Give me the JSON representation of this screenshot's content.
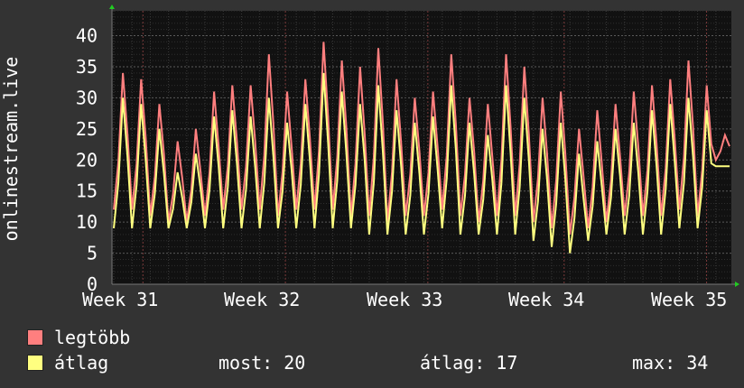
{
  "chart_data": {
    "type": "line",
    "ylabel": "onlinestream.live",
    "x_ticks": [
      "Week 31",
      "Week 32",
      "Week 33",
      "Week 34",
      "Week 35"
    ],
    "y_ticks": [
      0,
      5,
      10,
      15,
      20,
      25,
      30,
      35,
      40
    ],
    "ylim": [
      0,
      44
    ],
    "grid": true,
    "background": "#111111",
    "points_per_day": 4,
    "series": [
      {
        "name": "legtöbb",
        "color": "#ff7f7f",
        "daily_peak": [
          34,
          33,
          29,
          23,
          25,
          31,
          32,
          32,
          37,
          31,
          33,
          39,
          36,
          35,
          38,
          33,
          30,
          31,
          37,
          30,
          29,
          37,
          35,
          30,
          31,
          25,
          28,
          29,
          31,
          32,
          33,
          36,
          32,
          24
        ],
        "daily_low": [
          12,
          12,
          11,
          10,
          10,
          11,
          12,
          12,
          12,
          11,
          12,
          12,
          12,
          11,
          11,
          10,
          11,
          11,
          12,
          11,
          10,
          11,
          11,
          10,
          9,
          8,
          9,
          10,
          11,
          11,
          11,
          12,
          11,
          20
        ]
      },
      {
        "name": "átlag",
        "color": "#ffff80",
        "daily_peak": [
          30,
          29,
          25,
          18,
          21,
          27,
          28,
          27,
          30,
          26,
          29,
          34,
          31,
          29,
          32,
          28,
          26,
          27,
          32,
          26,
          24,
          32,
          30,
          25,
          26,
          21,
          23,
          25,
          26,
          28,
          29,
          30,
          28,
          19
        ],
        "daily_low": [
          9,
          9,
          9,
          9,
          9,
          9,
          9,
          9,
          9,
          9,
          9,
          9,
          9,
          9,
          8,
          8,
          8,
          8,
          9,
          8,
          8,
          8,
          8,
          7,
          6,
          5,
          7,
          8,
          8,
          8,
          8,
          9,
          9,
          19
        ]
      }
    ]
  },
  "legend": [
    {
      "label": "legtöbb",
      "color": "#ff7f7f"
    },
    {
      "label": "átlag",
      "color": "#ffff80"
    }
  ],
  "stats": {
    "now_label": "most: 20",
    "avg_label": "átlag: 17",
    "max_label": "max: 34"
  }
}
